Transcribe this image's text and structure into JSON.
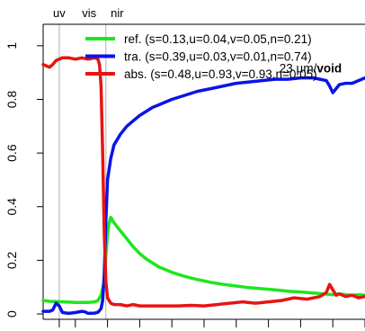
{
  "chart_data": {
    "type": "line",
    "title": "",
    "xlabel": "",
    "ylabel": "",
    "xlim": [
      0,
      100
    ],
    "ylim": [
      -0.02,
      1.08
    ],
    "y_ticks": [
      0,
      0.2,
      0.4,
      0.6,
      0.8,
      1
    ],
    "y_tick_labels": [
      "0",
      "0.2",
      "0.4",
      "0.6",
      "0.8",
      "1"
    ],
    "x_tick_values": [
      5,
      10,
      20,
      30,
      40,
      50,
      60,
      70,
      80,
      90,
      100
    ],
    "x_tick_labels_visible": false,
    "band_labels": [
      {
        "text": "uv",
        "x": 5
      },
      {
        "text": "vis",
        "x": 14.3
      },
      {
        "text": "nir",
        "x": 23
      }
    ],
    "band_separators_x": [
      5,
      19.5
    ],
    "legend_position": "top-right",
    "annotation": {
      "text_prefix": "23 µm/",
      "text_bold": "void",
      "near_x": 95,
      "near_y": 0.88
    },
    "series": [
      {
        "name": "ref.",
        "stats": "(s=0.13,u=0.04,v=0.05,n=0.21)",
        "color": "#1ee61e",
        "points": [
          [
            0,
            0.05
          ],
          [
            2,
            0.047
          ],
          [
            4,
            0.046
          ],
          [
            6,
            0.045
          ],
          [
            8,
            0.044
          ],
          [
            10,
            0.043
          ],
          [
            12,
            0.043
          ],
          [
            14,
            0.043
          ],
          [
            16,
            0.045
          ],
          [
            17,
            0.05
          ],
          [
            18,
            0.07
          ],
          [
            19,
            0.12
          ],
          [
            19.5,
            0.22
          ],
          [
            20,
            0.3
          ],
          [
            20.5,
            0.34
          ],
          [
            21,
            0.36
          ],
          [
            21.5,
            0.35
          ],
          [
            22,
            0.34
          ],
          [
            24,
            0.31
          ],
          [
            26,
            0.28
          ],
          [
            28,
            0.25
          ],
          [
            30,
            0.225
          ],
          [
            32,
            0.205
          ],
          [
            34,
            0.19
          ],
          [
            36,
            0.175
          ],
          [
            38,
            0.165
          ],
          [
            40,
            0.155
          ],
          [
            44,
            0.14
          ],
          [
            48,
            0.128
          ],
          [
            52,
            0.118
          ],
          [
            56,
            0.11
          ],
          [
            60,
            0.104
          ],
          [
            64,
            0.098
          ],
          [
            68,
            0.094
          ],
          [
            72,
            0.09
          ],
          [
            76,
            0.085
          ],
          [
            80,
            0.082
          ],
          [
            84,
            0.078
          ],
          [
            88,
            0.074
          ],
          [
            90,
            0.072
          ],
          [
            92,
            0.075
          ],
          [
            94,
            0.072
          ],
          [
            96,
            0.07
          ],
          [
            98,
            0.072
          ],
          [
            100,
            0.07
          ]
        ]
      },
      {
        "name": "tra.",
        "stats": "(s=0.39,u=0.03,v=0.01,n=0.74)",
        "color": "#0a14e6",
        "points": [
          [
            0,
            0.01
          ],
          [
            2,
            0.01
          ],
          [
            3,
            0.015
          ],
          [
            4,
            0.04
          ],
          [
            5,
            0.03
          ],
          [
            6,
            0.005
          ],
          [
            8,
            0.002
          ],
          [
            10,
            0.005
          ],
          [
            12,
            0.01
          ],
          [
            13,
            0.008
          ],
          [
            14,
            0.002
          ],
          [
            16,
            0.003
          ],
          [
            17,
            0.006
          ],
          [
            18,
            0.02
          ],
          [
            18.5,
            0.05
          ],
          [
            19,
            0.15
          ],
          [
            19.5,
            0.35
          ],
          [
            20,
            0.5
          ],
          [
            21,
            0.58
          ],
          [
            22,
            0.63
          ],
          [
            24,
            0.67
          ],
          [
            26,
            0.7
          ],
          [
            28,
            0.72
          ],
          [
            30,
            0.74
          ],
          [
            32,
            0.755
          ],
          [
            34,
            0.77
          ],
          [
            36,
            0.78
          ],
          [
            38,
            0.79
          ],
          [
            40,
            0.8
          ],
          [
            44,
            0.815
          ],
          [
            48,
            0.83
          ],
          [
            52,
            0.84
          ],
          [
            56,
            0.85
          ],
          [
            60,
            0.86
          ],
          [
            64,
            0.865
          ],
          [
            68,
            0.87
          ],
          [
            72,
            0.875
          ],
          [
            76,
            0.875
          ],
          [
            80,
            0.88
          ],
          [
            84,
            0.88
          ],
          [
            86,
            0.875
          ],
          [
            88,
            0.87
          ],
          [
            89,
            0.85
          ],
          [
            90,
            0.825
          ],
          [
            91,
            0.84
          ],
          [
            92,
            0.855
          ],
          [
            94,
            0.86
          ],
          [
            96,
            0.86
          ],
          [
            98,
            0.87
          ],
          [
            100,
            0.88
          ]
        ]
      },
      {
        "name": "abs.",
        "stats": "(s=0.48,u=0.93,v=0.93,n=0.05)",
        "color": "#e61414",
        "points": [
          [
            0,
            0.93
          ],
          [
            1,
            0.925
          ],
          [
            2,
            0.92
          ],
          [
            3,
            0.93
          ],
          [
            4,
            0.945
          ],
          [
            5,
            0.95
          ],
          [
            6,
            0.955
          ],
          [
            8,
            0.955
          ],
          [
            10,
            0.95
          ],
          [
            12,
            0.955
          ],
          [
            14,
            0.95
          ],
          [
            16,
            0.955
          ],
          [
            17,
            0.95
          ],
          [
            17.5,
            0.93
          ],
          [
            18,
            0.85
          ],
          [
            18.5,
            0.6
          ],
          [
            19,
            0.3
          ],
          [
            19.5,
            0.12
          ],
          [
            20,
            0.06
          ],
          [
            21,
            0.04
          ],
          [
            22,
            0.035
          ],
          [
            24,
            0.035
          ],
          [
            26,
            0.03
          ],
          [
            28,
            0.035
          ],
          [
            30,
            0.03
          ],
          [
            34,
            0.03
          ],
          [
            38,
            0.03
          ],
          [
            42,
            0.03
          ],
          [
            46,
            0.032
          ],
          [
            50,
            0.03
          ],
          [
            54,
            0.035
          ],
          [
            58,
            0.04
          ],
          [
            62,
            0.045
          ],
          [
            66,
            0.04
          ],
          [
            70,
            0.045
          ],
          [
            74,
            0.05
          ],
          [
            78,
            0.06
          ],
          [
            82,
            0.055
          ],
          [
            86,
            0.065
          ],
          [
            88,
            0.08
          ],
          [
            89,
            0.11
          ],
          [
            90,
            0.09
          ],
          [
            91,
            0.07
          ],
          [
            92,
            0.075
          ],
          [
            94,
            0.065
          ],
          [
            96,
            0.07
          ],
          [
            98,
            0.06
          ],
          [
            100,
            0.065
          ]
        ]
      }
    ]
  }
}
